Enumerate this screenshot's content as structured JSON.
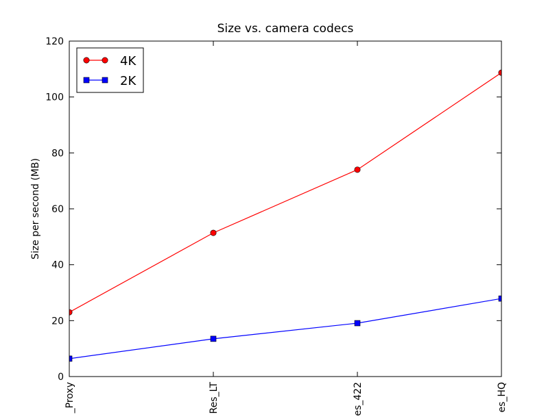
{
  "chart_data": {
    "type": "line",
    "title": "Size vs. camera codecs",
    "y_label": "Size per second (MB)",
    "categories": [
      "_Proxy",
      "Res_LT",
      "es_422",
      "es_HQ"
    ],
    "series": [
      {
        "name": "4K",
        "color": "#ff0000",
        "marker": "circle",
        "values": [
          23.0,
          51.4,
          74.0,
          108.7
        ]
      },
      {
        "name": "2K",
        "color": "#0000ff",
        "marker": "square",
        "values": [
          6.4,
          13.5,
          19.1,
          27.9
        ]
      }
    ],
    "ylim": [
      0,
      120
    ],
    "yticks": [
      0,
      20,
      40,
      60,
      80,
      100,
      120
    ],
    "legend": "upper left"
  }
}
